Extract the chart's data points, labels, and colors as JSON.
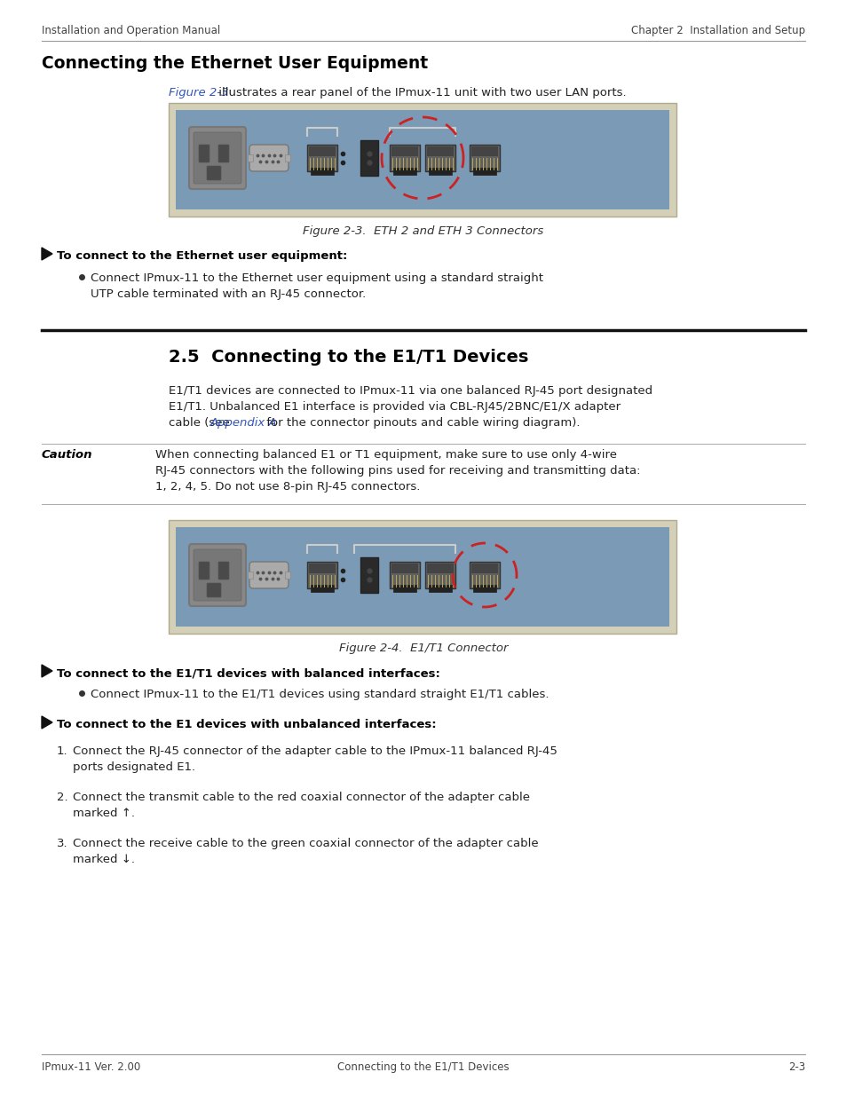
{
  "bg_color": "#ffffff",
  "header_left": "Installation and Operation Manual",
  "header_right": "Chapter 2  Installation and Setup",
  "footer_left": "IPmux-11 Ver. 2.00",
  "footer_center": "Connecting to the E1/T1 Devices",
  "footer_right": "2-3",
  "section1_title": "Connecting the Ethernet User Equipment",
  "section1_intro_link": "Figure 2-3",
  "section1_intro_rest": " illustrates a rear panel of the IPmux-11 unit with two user LAN ports.",
  "fig1_caption": "Figure 2-3.  ETH 2 and ETH 3 Connectors",
  "arrow1_label": "To connect to the Ethernet user equipment:",
  "section2_num": "2.5",
  "section2_title": "Connecting to the E1/T1 Devices",
  "caution_label": "Caution",
  "fig2_caption": "Figure 2-4.  E1/T1 Connector",
  "arrow2_label": "To connect to the E1/T1 devices with balanced interfaces:",
  "bullet2": "Connect IPmux-11 to the E1/T1 devices using standard straight E1/T1 cables.",
  "arrow3_label": "To connect to the E1 devices with unbalanced interfaces:",
  "panel_bg": "#7a9ab5",
  "panel_outer_bg": "#d4d0b8",
  "dashed_circle_color": "#cc2222",
  "link_color": "#3355bb",
  "text_color": "#111111",
  "body_color": "#222222"
}
